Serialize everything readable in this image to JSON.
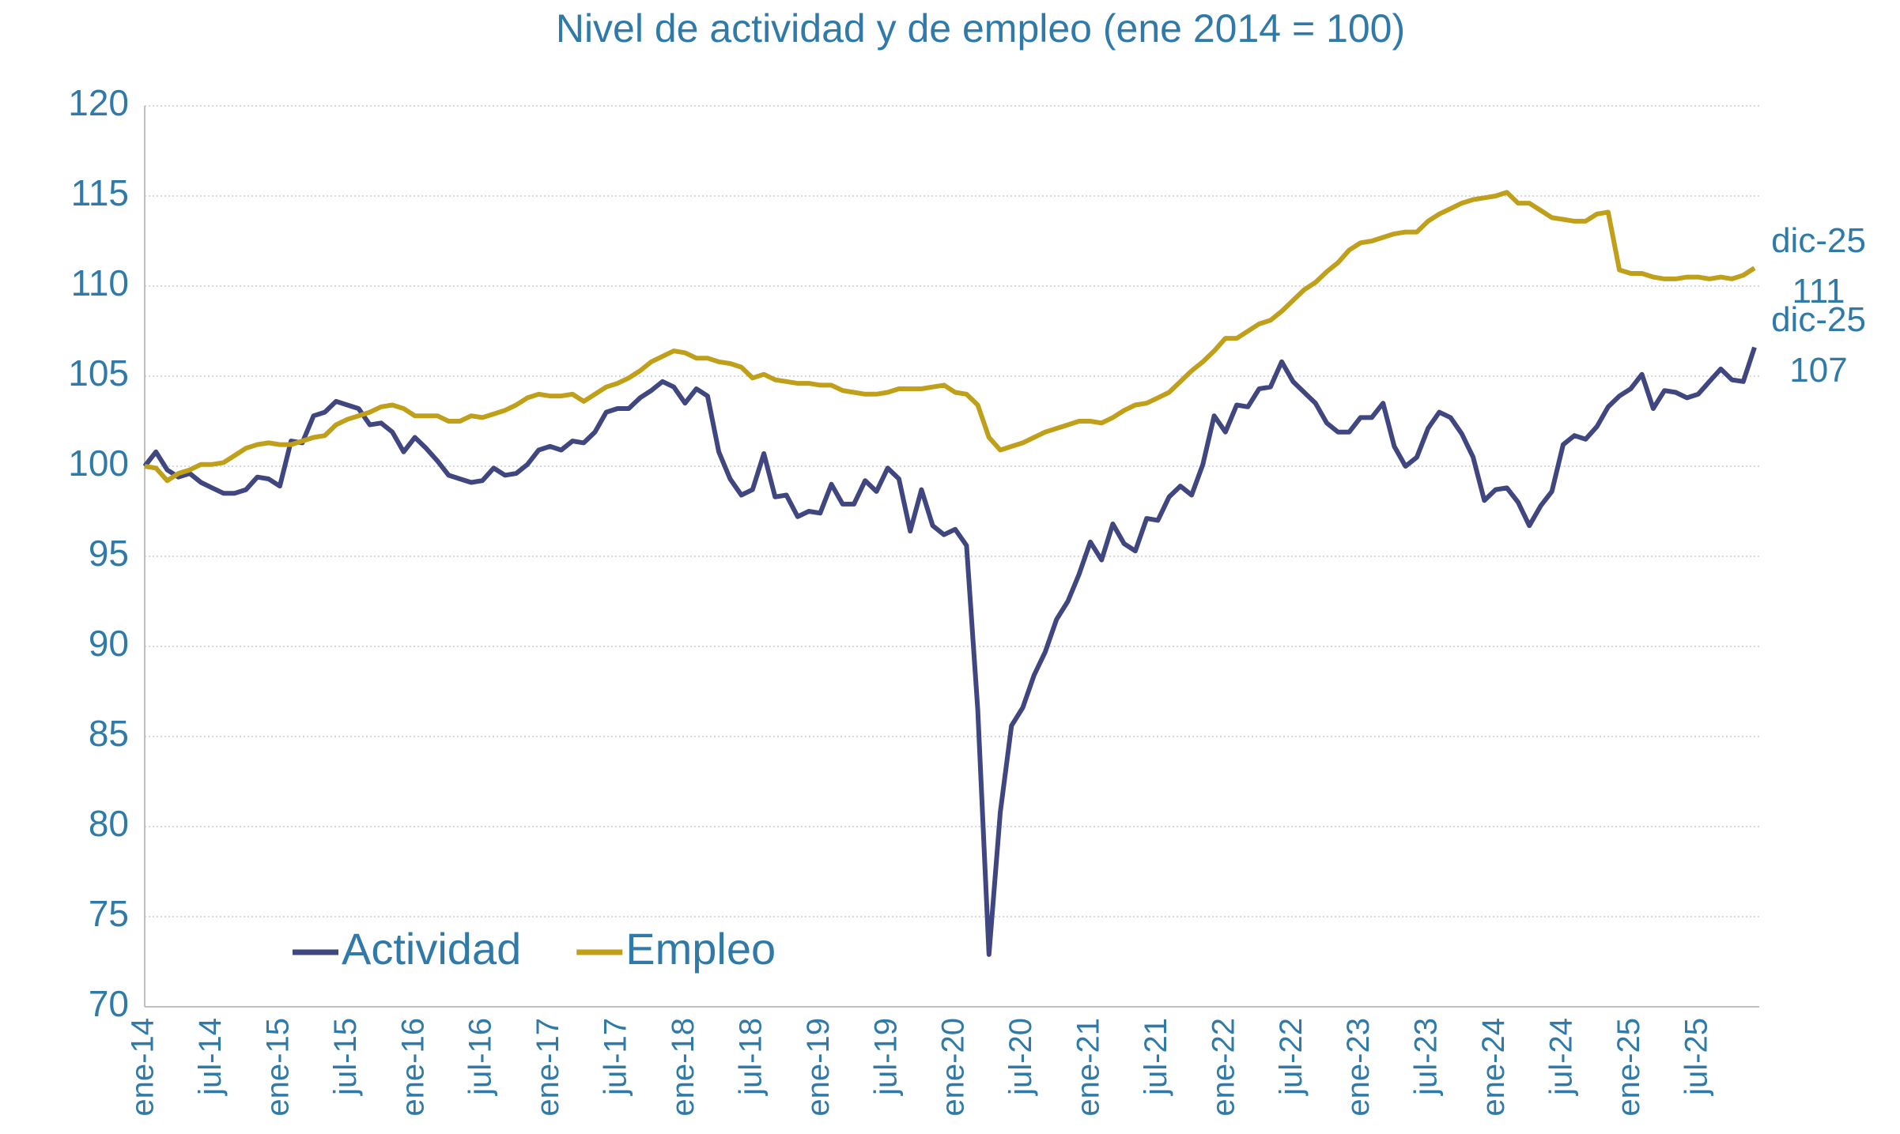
{
  "chart_data": {
    "type": "line",
    "title": "Nivel de actividad y de empleo (ene 2014 = 100)",
    "categories": [
      "ene-14",
      null,
      null,
      null,
      null,
      null,
      "jul-14",
      null,
      null,
      null,
      null,
      null,
      "ene-15",
      null,
      null,
      null,
      null,
      null,
      "jul-15",
      null,
      null,
      null,
      null,
      null,
      "ene-16",
      null,
      null,
      null,
      null,
      null,
      "jul-16",
      null,
      null,
      null,
      null,
      null,
      "ene-17",
      null,
      null,
      null,
      null,
      null,
      "jul-17",
      null,
      null,
      null,
      null,
      null,
      "ene-18",
      null,
      null,
      null,
      null,
      null,
      "jul-18",
      null,
      null,
      null,
      null,
      null,
      "ene-19",
      null,
      null,
      null,
      null,
      null,
      "jul-19",
      null,
      null,
      null,
      null,
      null,
      "ene-20",
      null,
      null,
      null,
      null,
      null,
      "jul-20",
      null,
      null,
      null,
      null,
      null,
      "ene-21",
      null,
      null,
      null,
      null,
      null,
      "jul-21",
      null,
      null,
      null,
      null,
      null,
      "ene-22",
      null,
      null,
      null,
      null,
      null,
      "jul-22",
      null,
      null,
      null,
      null,
      null,
      "ene-23",
      null,
      null,
      null,
      null,
      null,
      "jul-23",
      null,
      null,
      null,
      null,
      null,
      "ene-24",
      null,
      null,
      null,
      null,
      null,
      "jul-24",
      null,
      null,
      null,
      null,
      null,
      "ene-25",
      null,
      null,
      null,
      null,
      null,
      "jul-25",
      null,
      null,
      null,
      null,
      null
    ],
    "series": [
      {
        "name": "Actividad",
        "color": "#3f4680",
        "values": [
          100,
          100.8,
          99.8,
          99.4,
          99.6,
          99.1,
          98.8,
          98.5,
          98.5,
          98.7,
          99.4,
          99.3,
          98.9,
          101.4,
          101.3,
          102.8,
          103.0,
          103.6,
          103.4,
          103.2,
          102.3,
          102.4,
          101.9,
          100.8,
          101.6,
          101.0,
          100.3,
          99.5,
          99.3,
          99.1,
          99.2,
          99.9,
          99.5,
          99.6,
          100.1,
          100.9,
          101.1,
          100.9,
          101.4,
          101.3,
          101.9,
          103.0,
          103.2,
          103.2,
          103.8,
          104.2,
          104.7,
          104.4,
          103.5,
          104.3,
          103.9,
          100.8,
          99.3,
          98.4,
          98.7,
          100.7,
          98.3,
          98.4,
          97.2,
          97.5,
          97.4,
          99.0,
          97.9,
          97.9,
          99.2,
          98.6,
          99.9,
          99.3,
          96.4,
          98.7,
          96.7,
          96.2,
          96.5,
          95.6,
          86.5,
          72.9,
          80.8,
          85.6,
          86.6,
          88.4,
          89.7,
          91.5,
          92.5,
          94.0,
          95.8,
          94.8,
          96.8,
          95.7,
          95.3,
          97.1,
          97.0,
          98.3,
          98.9,
          98.4,
          100.1,
          102.8,
          101.9,
          103.4,
          103.3,
          104.3,
          104.4,
          105.8,
          104.7,
          104.1,
          103.5,
          102.4,
          101.9,
          101.9,
          102.7,
          102.7,
          103.5,
          101.1,
          100.0,
          100.5,
          102.1,
          103.0,
          102.7,
          101.8,
          100.5,
          98.1,
          98.7,
          98.8,
          98.0,
          96.7,
          97.8,
          98.6,
          101.2,
          101.7,
          101.5,
          102.2,
          103.3,
          103.9,
          104.3,
          105.1,
          103.2,
          104.2,
          104.1,
          103.8,
          104.0,
          104.7,
          105.4,
          104.8,
          104.7,
          106.6
        ]
      },
      {
        "name": "Empleo",
        "color": "#c0a01a",
        "values": [
          100,
          99.9,
          99.2,
          99.6,
          99.8,
          100.1,
          100.1,
          100.2,
          100.6,
          101.0,
          101.2,
          101.3,
          101.2,
          101.2,
          101.4,
          101.6,
          101.7,
          102.3,
          102.6,
          102.8,
          103.0,
          103.3,
          103.4,
          103.2,
          102.8,
          102.8,
          102.8,
          102.5,
          102.5,
          102.8,
          102.7,
          102.9,
          103.1,
          103.4,
          103.8,
          104.0,
          103.9,
          103.9,
          104.0,
          103.6,
          104.0,
          104.4,
          104.6,
          104.9,
          105.3,
          105.8,
          106.1,
          106.4,
          106.3,
          106.0,
          106.0,
          105.8,
          105.7,
          105.5,
          104.9,
          105.1,
          104.8,
          104.7,
          104.6,
          104.6,
          104.5,
          104.5,
          104.2,
          104.1,
          104.0,
          104.0,
          104.1,
          104.3,
          104.3,
          104.3,
          104.4,
          104.5,
          104.1,
          104.0,
          103.4,
          101.6,
          100.9,
          101.1,
          101.3,
          101.6,
          101.9,
          102.1,
          102.3,
          102.5,
          102.5,
          102.4,
          102.7,
          103.1,
          103.4,
          103.5,
          103.8,
          104.1,
          104.7,
          105.3,
          105.8,
          106.4,
          107.1,
          107.1,
          107.5,
          107.9,
          108.1,
          108.6,
          109.2,
          109.8,
          110.2,
          110.8,
          111.3,
          112.0,
          112.4,
          112.5,
          112.7,
          112.9,
          113.0,
          113.0,
          113.6,
          114.0,
          114.3,
          114.6,
          114.8,
          114.9,
          115.0,
          115.2,
          114.6,
          114.6,
          114.2,
          113.8,
          113.7,
          113.6,
          113.6,
          114.0,
          114.1,
          110.9,
          110.7,
          110.7,
          110.5,
          110.4,
          110.4,
          110.5,
          110.5,
          110.4,
          110.5,
          110.4,
          110.6,
          111.0
        ]
      }
    ],
    "annotations": [
      {
        "series": 1,
        "text": "dic-25",
        "label": "111"
      },
      {
        "series": 0,
        "text": "dic-25",
        "label": "107"
      }
    ],
    "ylim": [
      70,
      120
    ],
    "yticks": [
      70,
      75,
      80,
      85,
      90,
      95,
      100,
      105,
      110,
      115,
      120
    ],
    "grid": true,
    "legend": "bottom-left"
  }
}
